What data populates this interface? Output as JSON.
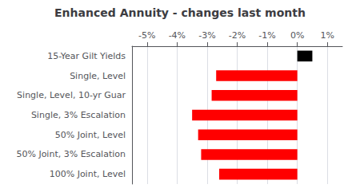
{
  "chart_data": {
    "type": "bar",
    "orientation": "horizontal",
    "title": "Enhanced Annuity - changes last month",
    "categories": [
      "15-Year Gilt Yields",
      "Single, Level",
      "Single, Level, 10-yr Guar",
      "Single, 3% Escalation",
      "50% Joint, Level",
      "50% Joint, 3% Escalation",
      "100% Joint, Level"
    ],
    "values": [
      0.5,
      -2.7,
      -2.85,
      -3.5,
      -3.3,
      -3.2,
      -2.6
    ],
    "colors": [
      "#000000",
      "#ff0000",
      "#ff0000",
      "#ff0000",
      "#ff0000",
      "#ff0000",
      "#ff0000"
    ],
    "xlim": [
      -5.5,
      1.5
    ],
    "xticks": [
      {
        "value": -5,
        "label": "-5%"
      },
      {
        "value": -4,
        "label": "-4%"
      },
      {
        "value": -3,
        "label": "-3%"
      },
      {
        "value": -2,
        "label": "-2%"
      },
      {
        "value": -1,
        "label": "-1%"
      },
      {
        "value": 0,
        "label": "0%"
      },
      {
        "value": 1,
        "label": "1%"
      }
    ],
    "grid": true
  }
}
